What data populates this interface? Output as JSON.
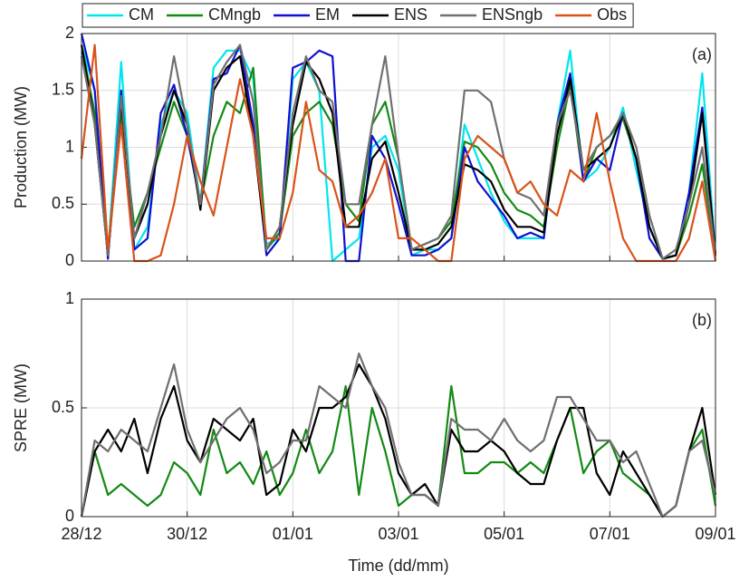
{
  "chart_data": [
    {
      "type": "line",
      "ylabel": "Production (MW)",
      "annotation": "(a)",
      "grid": true,
      "legend": "top",
      "x": [
        0,
        0.25,
        0.5,
        0.75,
        1,
        1.25,
        1.5,
        1.75,
        2,
        2.25,
        2.5,
        2.75,
        3,
        3.25,
        3.5,
        3.75,
        4,
        4.25,
        4.5,
        4.75,
        5,
        5.25,
        5.5,
        5.75,
        6,
        6.25,
        6.5,
        6.75,
        7,
        7.25,
        7.5,
        7.75,
        8,
        8.25,
        8.5,
        8.75,
        9,
        9.25,
        9.5,
        9.75,
        10,
        10.25,
        10.5,
        10.75,
        11,
        11.25,
        11.5,
        11.75,
        12
      ],
      "xlim": [
        0,
        12
      ],
      "ylim": [
        0,
        2
      ],
      "yticks": [
        0,
        0.5,
        1,
        1.5,
        2
      ],
      "series": [
        {
          "name": "CM",
          "color": "#00e5ee",
          "values": [
            1.9,
            1.5,
            0.05,
            1.75,
            0.1,
            0.3,
            1.2,
            1.5,
            1.3,
            0.5,
            1.7,
            1.85,
            1.85,
            1.6,
            0.15,
            0.2,
            1.6,
            1.75,
            1.5,
            0,
            0.1,
            0.2,
            1.0,
            1.1,
            0.8,
            0.05,
            0.1,
            0.1,
            0.2,
            1.2,
            0.9,
            0.6,
            0.35,
            0.2,
            0.2,
            0.2,
            1.2,
            1.85,
            0.7,
            0.8,
            1.0,
            1.35,
            0.8,
            0.3,
            0.02,
            0.05,
            0.6,
            1.65,
            0.05
          ]
        },
        {
          "name": "CMngb",
          "color": "#138a13",
          "values": [
            1.9,
            1.3,
            0.05,
            1.3,
            0.3,
            0.6,
            1.0,
            1.4,
            1.1,
            0.5,
            1.1,
            1.4,
            1.3,
            1.7,
            0.1,
            0.25,
            1.1,
            1.3,
            1.4,
            1.2,
            0.5,
            0.35,
            1.2,
            1.4,
            0.9,
            0.1,
            0.15,
            0.2,
            0.35,
            1.05,
            1.0,
            0.85,
            0.6,
            0.45,
            0.4,
            0.3,
            1.0,
            1.55,
            0.7,
            1.0,
            1.1,
            1.25,
            0.9,
            0.3,
            0.02,
            0.05,
            0.4,
            0.85,
            0.05
          ]
        },
        {
          "name": "EM",
          "color": "#1010d0",
          "values": [
            2.0,
            1.5,
            0.02,
            1.5,
            0.1,
            0.2,
            1.3,
            1.55,
            1.1,
            0.5,
            1.6,
            1.65,
            1.9,
            1.2,
            0.05,
            0.2,
            1.7,
            1.75,
            1.85,
            1.8,
            0,
            0,
            1.1,
            0.9,
            0.5,
            0.05,
            0.05,
            0.1,
            0.2,
            1.0,
            0.7,
            0.55,
            0.4,
            0.2,
            0.25,
            0.2,
            1.2,
            1.65,
            0.7,
            0.9,
            0.8,
            1.3,
            0.9,
            0.2,
            0.02,
            0.05,
            0.6,
            1.35,
            0.05
          ]
        },
        {
          "name": "ENS",
          "color": "#000000",
          "values": [
            1.9,
            1.2,
            0.05,
            1.4,
            0.2,
            0.5,
            1.1,
            1.5,
            1.2,
            0.45,
            1.5,
            1.7,
            1.8,
            1.1,
            0.1,
            0.3,
            1.2,
            1.75,
            1.6,
            1.3,
            0.3,
            0.3,
            0.9,
            1.05,
            0.6,
            0.1,
            0.1,
            0.15,
            0.3,
            0.85,
            0.8,
            0.7,
            0.45,
            0.3,
            0.3,
            0.25,
            1.1,
            1.6,
            0.8,
            0.9,
            1.0,
            1.3,
            0.9,
            0.3,
            0.02,
            0.05,
            0.5,
            1.3,
            0.05
          ]
        },
        {
          "name": "ENSngb",
          "color": "#707070",
          "values": [
            1.8,
            1.2,
            0.05,
            1.45,
            0.2,
            0.6,
            1.1,
            1.8,
            1.2,
            0.5,
            1.55,
            1.75,
            1.9,
            1.4,
            0.1,
            0.3,
            1.3,
            1.8,
            1.5,
            1.4,
            0.5,
            0.5,
            1.2,
            1.8,
            0.9,
            0.1,
            0.15,
            0.2,
            0.4,
            1.5,
            1.5,
            1.4,
            0.9,
            0.6,
            0.55,
            0.4,
            1.2,
            1.5,
            0.8,
            1.0,
            1.1,
            1.3,
            1.0,
            0.4,
            0.02,
            0.1,
            0.5,
            1.0,
            0.05
          ]
        },
        {
          "name": "Obs",
          "color": "#d95319",
          "values": [
            0.9,
            1.9,
            0.1,
            1.2,
            0,
            0,
            0.05,
            0.5,
            1.1,
            0.7,
            0.4,
            1.0,
            1.6,
            1.1,
            0.2,
            0.2,
            0.6,
            1.4,
            0.8,
            0.7,
            0.3,
            0.4,
            0.6,
            0.9,
            0.2,
            0.2,
            0.1,
            0,
            0,
            0.9,
            1.1,
            1.0,
            0.9,
            0.6,
            0.7,
            0.5,
            0.4,
            0.8,
            0.7,
            1.3,
            0.7,
            0.2,
            0,
            0,
            0,
            0,
            0.2,
            0.7,
            0
          ]
        }
      ]
    },
    {
      "type": "line",
      "ylabel": "SPRE (MW)",
      "xlabel": "Time (dd/mm)",
      "annotation": "(b)",
      "grid": true,
      "x": [
        0,
        0.25,
        0.5,
        0.75,
        1,
        1.25,
        1.5,
        1.75,
        2,
        2.25,
        2.5,
        2.75,
        3,
        3.25,
        3.5,
        3.75,
        4,
        4.25,
        4.5,
        4.75,
        5,
        5.25,
        5.5,
        5.75,
        6,
        6.25,
        6.5,
        6.75,
        7,
        7.25,
        7.5,
        7.75,
        8,
        8.25,
        8.5,
        8.75,
        9,
        9.25,
        9.5,
        9.75,
        10,
        10.25,
        10.5,
        10.75,
        11,
        11.25,
        11.5,
        11.75,
        12
      ],
      "xlim": [
        0,
        12
      ],
      "ylim": [
        0,
        1
      ],
      "yticks": [
        0,
        0.5,
        1
      ],
      "xticks": [
        {
          "value": 0,
          "label": "28/12"
        },
        {
          "value": 2,
          "label": "30/12"
        },
        {
          "value": 4,
          "label": "01/01"
        },
        {
          "value": 6,
          "label": "03/01"
        },
        {
          "value": 8,
          "label": "05/01"
        },
        {
          "value": 10,
          "label": "07/01"
        },
        {
          "value": 12,
          "label": "09/01"
        }
      ],
      "series": [
        {
          "name": "CMngb",
          "color": "#138a13",
          "values": [
            0,
            0.3,
            0.1,
            0.15,
            0.1,
            0.05,
            0.1,
            0.25,
            0.2,
            0.1,
            0.4,
            0.2,
            0.25,
            0.15,
            0.3,
            0.1,
            0.2,
            0.4,
            0.2,
            0.3,
            0.6,
            0.1,
            0.5,
            0.3,
            0.05,
            0.1,
            0.1,
            0.05,
            0.6,
            0.2,
            0.2,
            0.25,
            0.25,
            0.2,
            0.25,
            0.2,
            0.35,
            0.5,
            0.2,
            0.3,
            0.35,
            0.2,
            0.15,
            0.1,
            0,
            0.05,
            0.3,
            0.4,
            0.05
          ]
        },
        {
          "name": "ENS",
          "color": "#000000",
          "values": [
            0,
            0.3,
            0.4,
            0.3,
            0.45,
            0.2,
            0.45,
            0.6,
            0.35,
            0.25,
            0.45,
            0.4,
            0.35,
            0.45,
            0.1,
            0.15,
            0.4,
            0.3,
            0.5,
            0.5,
            0.55,
            0.7,
            0.6,
            0.45,
            0.2,
            0.1,
            0.15,
            0.05,
            0.4,
            0.3,
            0.3,
            0.35,
            0.3,
            0.2,
            0.15,
            0.15,
            0.35,
            0.5,
            0.5,
            0.2,
            0.1,
            0.3,
            0.2,
            0.1,
            0,
            0.05,
            0.3,
            0.5,
            0.1
          ]
        },
        {
          "name": "ENSngb",
          "color": "#707070",
          "values": [
            0,
            0.35,
            0.3,
            0.4,
            0.35,
            0.3,
            0.5,
            0.7,
            0.4,
            0.25,
            0.35,
            0.45,
            0.5,
            0.4,
            0.2,
            0.25,
            0.35,
            0.35,
            0.6,
            0.55,
            0.5,
            0.75,
            0.6,
            0.5,
            0.25,
            0.1,
            0.1,
            0.05,
            0.45,
            0.4,
            0.4,
            0.35,
            0.45,
            0.35,
            0.3,
            0.35,
            0.55,
            0.55,
            0.45,
            0.35,
            0.35,
            0.25,
            0.3,
            0.15,
            0,
            0.05,
            0.3,
            0.35,
            0.1
          ]
        }
      ]
    }
  ]
}
